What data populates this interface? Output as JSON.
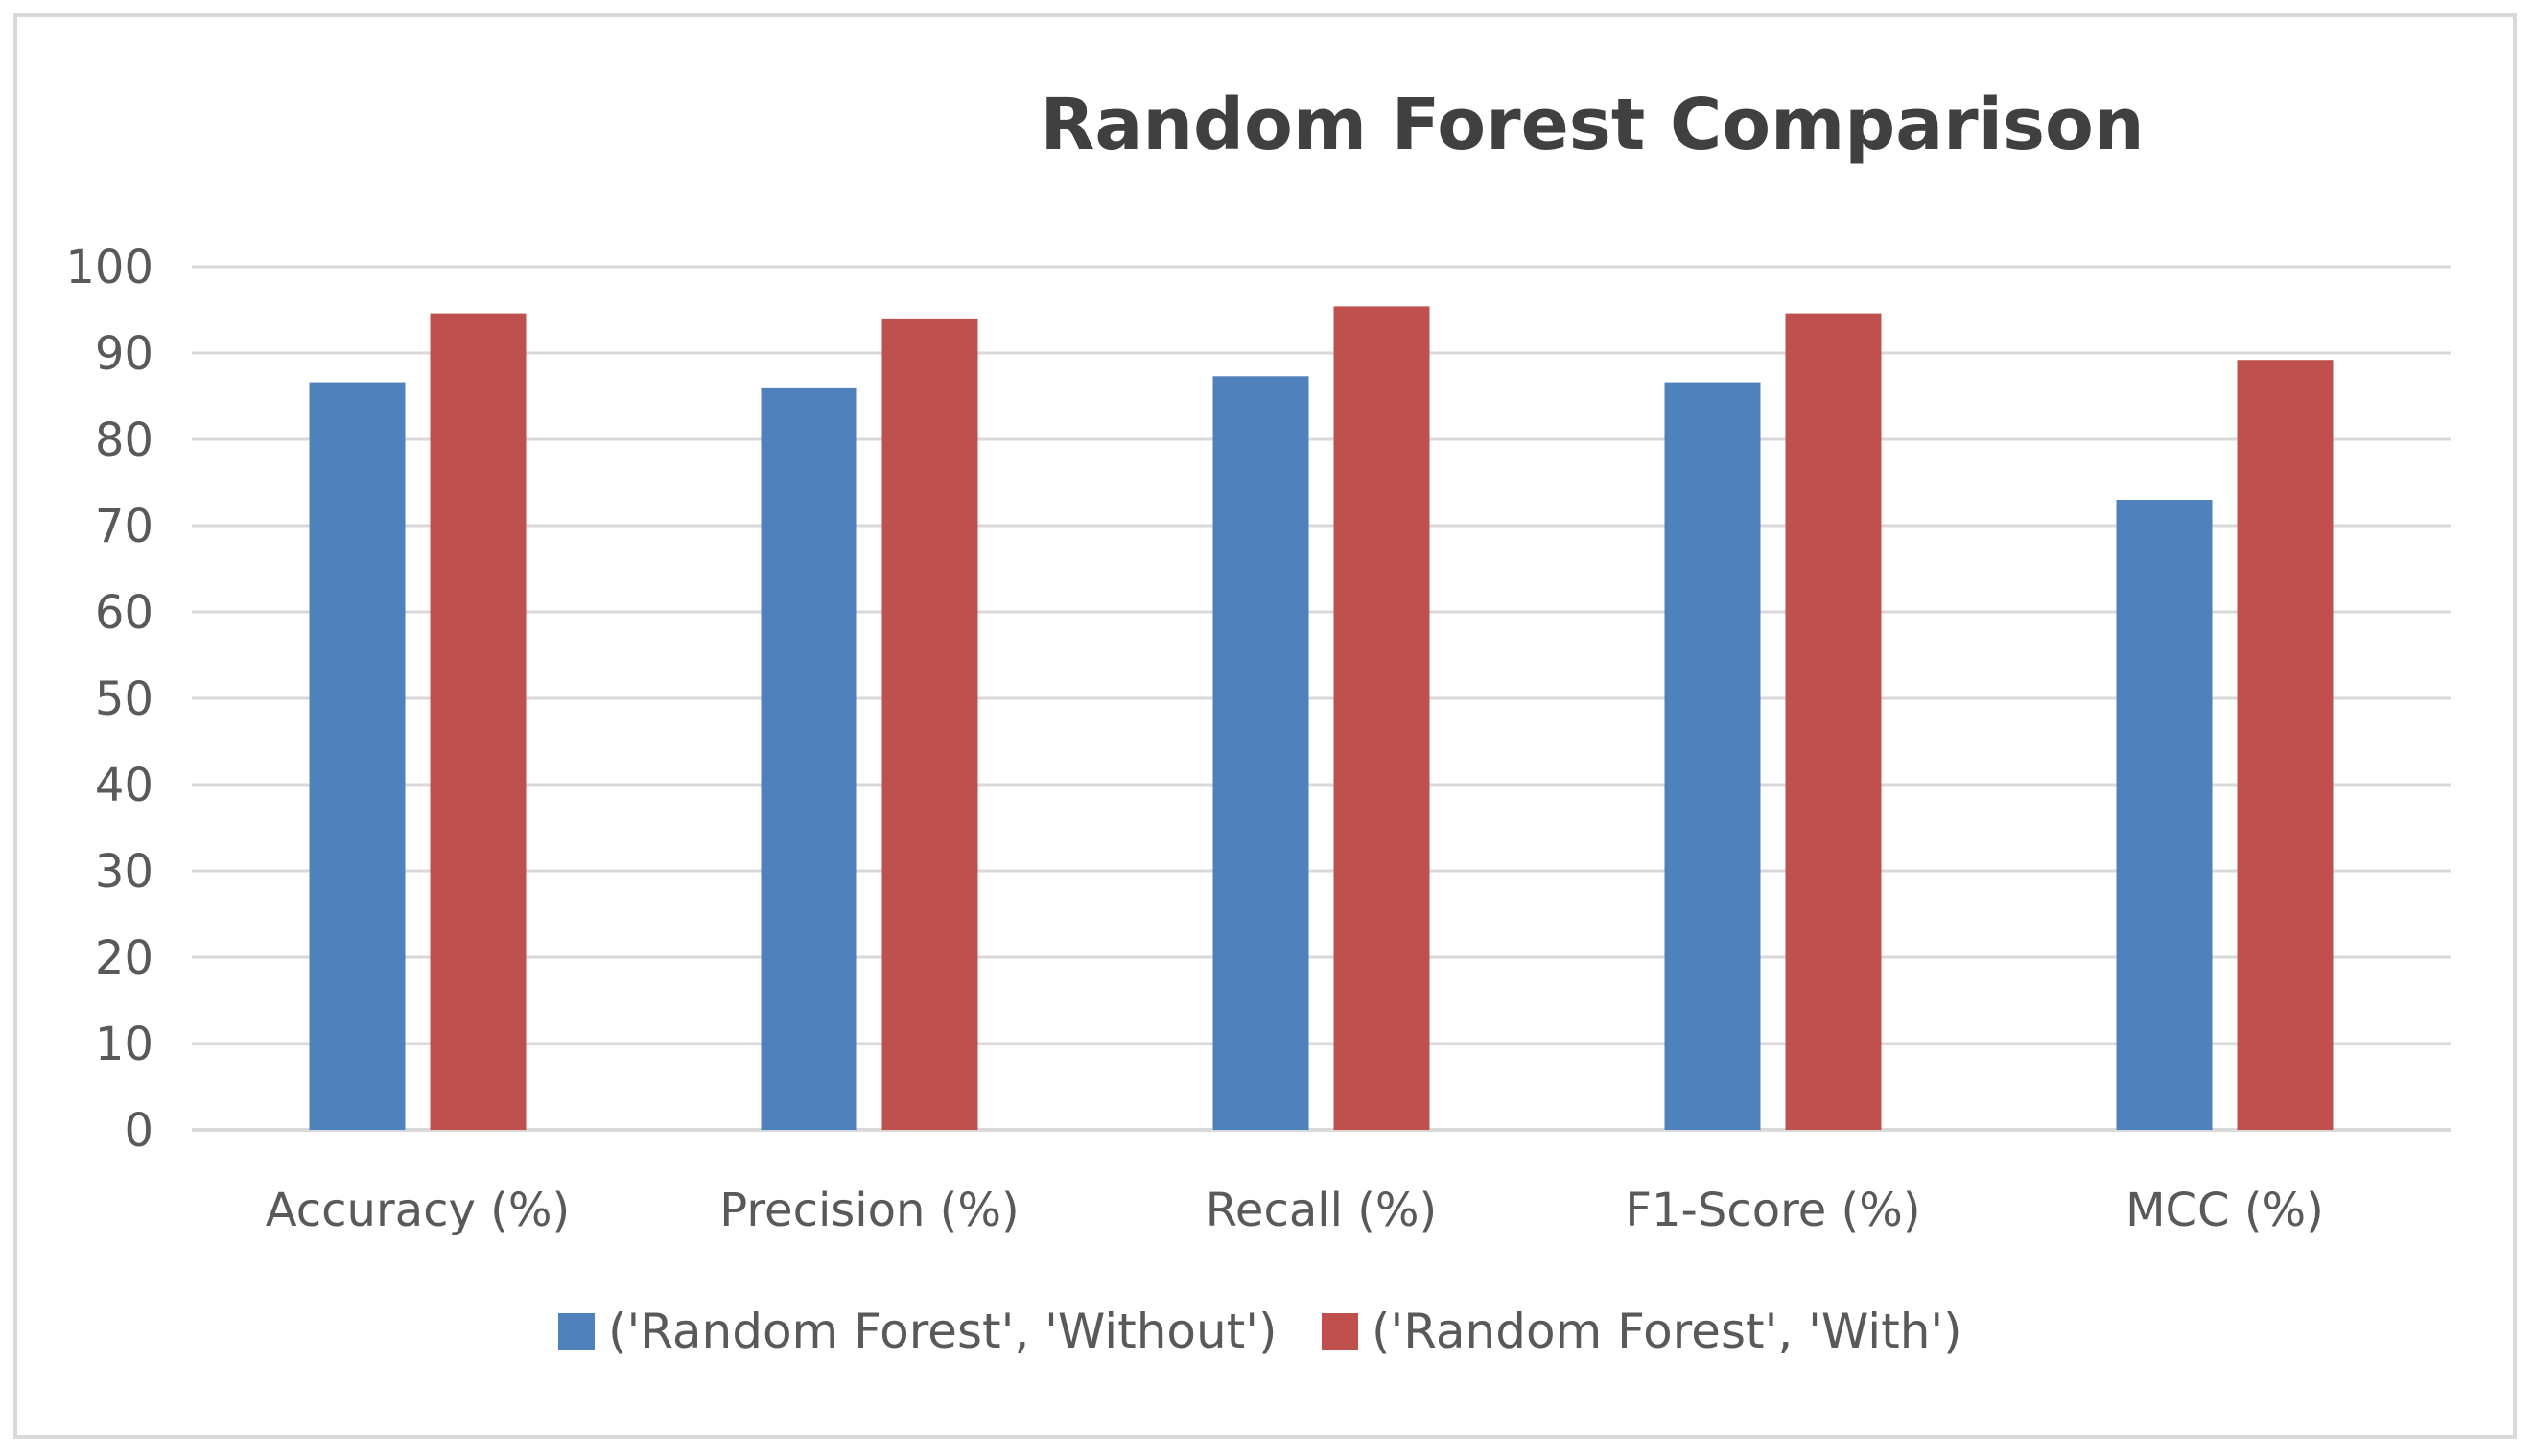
{
  "chart_data": {
    "type": "bar",
    "title": "Random Forest Comparison",
    "xlabel": "",
    "ylabel": "",
    "categories": [
      "Accuracy (%)",
      "Precision (%)",
      "Recall (%)",
      "F1-Score (%)",
      "MCC (%)"
    ],
    "series": [
      {
        "name": "('Random Forest', 'Without')",
        "color": "#4f81bd",
        "values": [
          86.6,
          85.9,
          87.3,
          86.6,
          73.0
        ]
      },
      {
        "name": "('Random Forest', 'With')",
        "color": "#c0504d",
        "values": [
          94.6,
          93.9,
          95.4,
          94.6,
          89.2
        ]
      }
    ],
    "ylim": [
      0,
      100
    ],
    "yticks": [
      0,
      10,
      20,
      30,
      40,
      50,
      60,
      70,
      80,
      90,
      100
    ],
    "grid": true,
    "legend_position": "bottom",
    "gridline_color": "#d9d9d9",
    "text_color": "#595959",
    "title_color": "#404040"
  }
}
